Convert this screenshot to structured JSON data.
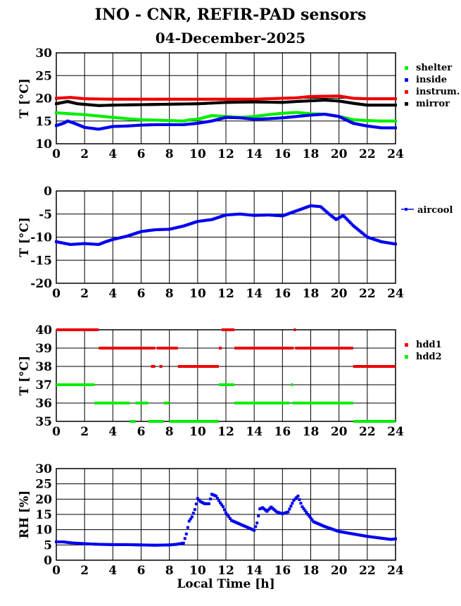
{
  "header": {
    "title": "INO - CNR, REFIR-PAD sensors",
    "date": "04-December-2025"
  },
  "chart_data": [
    {
      "type": "scatter",
      "ylabel": "T [°C]",
      "xlabel": "",
      "xlim": [
        0,
        24
      ],
      "ylim": [
        10,
        30
      ],
      "xticks": [
        "0",
        "2",
        "4",
        "6",
        "8",
        "10",
        "12",
        "14",
        "16",
        "18",
        "20",
        "22",
        "24"
      ],
      "yticks": [
        "10",
        "15",
        "20",
        "25",
        "30"
      ],
      "grid": true,
      "legend": "right",
      "series": [
        {
          "name": "shelter",
          "color": "#00ee00",
          "points": [
            [
              0,
              16.8
            ],
            [
              1,
              16.6
            ],
            [
              2,
              16.4
            ],
            [
              3,
              16.1
            ],
            [
              4,
              15.8
            ],
            [
              5,
              15.5
            ],
            [
              6,
              15.3
            ],
            [
              7,
              15.2
            ],
            [
              8,
              15.1
            ],
            [
              9,
              15.0
            ],
            [
              9.5,
              15.3
            ],
            [
              10,
              15.4
            ],
            [
              10.5,
              15.8
            ],
            [
              11,
              16.2
            ],
            [
              12,
              16.0
            ],
            [
              13,
              15.8
            ],
            [
              14,
              16.0
            ],
            [
              15,
              16.4
            ],
            [
              16,
              16.7
            ],
            [
              17,
              16.9
            ],
            [
              18,
              16.6
            ],
            [
              19,
              16.5
            ],
            [
              20,
              16.0
            ],
            [
              21,
              15.3
            ],
            [
              22,
              15.1
            ],
            [
              23,
              15.0
            ],
            [
              24,
              15.0
            ]
          ]
        },
        {
          "name": "inside",
          "color": "#0000ee",
          "points": [
            [
              0,
              14.0
            ],
            [
              0.5,
              14.5
            ],
            [
              0.8,
              15.0
            ],
            [
              1.2,
              14.6
            ],
            [
              2,
              13.6
            ],
            [
              3,
              13.2
            ],
            [
              3.5,
              13.5
            ],
            [
              4,
              13.8
            ],
            [
              5,
              13.9
            ],
            [
              6,
              14.1
            ],
            [
              7,
              14.2
            ],
            [
              8,
              14.2
            ],
            [
              9,
              14.2
            ],
            [
              10,
              14.5
            ],
            [
              11,
              15.0
            ],
            [
              12,
              15.8
            ],
            [
              13,
              15.7
            ],
            [
              14,
              15.4
            ],
            [
              15,
              15.5
            ],
            [
              16,
              15.7
            ],
            [
              17,
              16.0
            ],
            [
              18,
              16.3
            ],
            [
              19,
              16.5
            ],
            [
              20,
              16.0
            ],
            [
              21,
              14.5
            ],
            [
              22,
              13.9
            ],
            [
              23,
              13.5
            ],
            [
              24,
              13.5
            ]
          ]
        },
        {
          "name": "instrum.",
          "color": "#ee0000",
          "points": [
            [
              0,
              20.0
            ],
            [
              1,
              20.2
            ],
            [
              2,
              19.9
            ],
            [
              4,
              19.8
            ],
            [
              8,
              19.8
            ],
            [
              10,
              19.8
            ],
            [
              12,
              19.8
            ],
            [
              14,
              19.8
            ],
            [
              16,
              20.0
            ],
            [
              17,
              20.1
            ],
            [
              18,
              20.4
            ],
            [
              20,
              20.5
            ],
            [
              21,
              20.0
            ],
            [
              22,
              19.9
            ],
            [
              24,
              19.9
            ]
          ]
        },
        {
          "name": "mirror",
          "color": "#000000",
          "points": [
            [
              0,
              18.8
            ],
            [
              0.8,
              19.3
            ],
            [
              1.5,
              18.8
            ],
            [
              3,
              18.4
            ],
            [
              4,
              18.5
            ],
            [
              6,
              18.6
            ],
            [
              8,
              18.7
            ],
            [
              10,
              18.8
            ],
            [
              12,
              19.1
            ],
            [
              14,
              19.2
            ],
            [
              16,
              19.1
            ],
            [
              17,
              19.3
            ],
            [
              19,
              19.6
            ],
            [
              20,
              19.4
            ],
            [
              21,
              18.9
            ],
            [
              22,
              18.5
            ],
            [
              24,
              18.5
            ]
          ]
        }
      ]
    },
    {
      "type": "scatter",
      "ylabel": "T [°C]",
      "xlabel": "",
      "xlim": [
        0,
        24
      ],
      "ylim": [
        -20,
        0
      ],
      "xticks": [
        "0",
        "2",
        "4",
        "6",
        "8",
        "10",
        "12",
        "14",
        "16",
        "18",
        "20",
        "22",
        "24"
      ],
      "yticks": [
        "-20",
        "-15",
        "-10",
        "-5",
        "0"
      ],
      "grid": true,
      "legend": "right",
      "series": [
        {
          "name": "aircool",
          "color": "#0000ee",
          "points": [
            [
              0,
              -11.0
            ],
            [
              0.5,
              -11.3
            ],
            [
              1,
              -11.6
            ],
            [
              2,
              -11.4
            ],
            [
              3,
              -11.6
            ],
            [
              3.5,
              -11.0
            ],
            [
              4,
              -10.5
            ],
            [
              5,
              -9.8
            ],
            [
              6,
              -8.8
            ],
            [
              7,
              -8.4
            ],
            [
              8,
              -8.3
            ],
            [
              9,
              -7.6
            ],
            [
              10,
              -6.6
            ],
            [
              11,
              -6.2
            ],
            [
              12,
              -5.2
            ],
            [
              13,
              -5.0
            ],
            [
              14,
              -5.3
            ],
            [
              15,
              -5.2
            ],
            [
              16,
              -5.4
            ],
            [
              17,
              -4.3
            ],
            [
              18,
              -3.2
            ],
            [
              18.7,
              -3.4
            ],
            [
              19.3,
              -5.0
            ],
            [
              19.8,
              -6.2
            ],
            [
              20.3,
              -5.3
            ],
            [
              21,
              -7.5
            ],
            [
              22,
              -10.0
            ],
            [
              23,
              -11.0
            ],
            [
              24,
              -11.5
            ]
          ]
        }
      ]
    },
    {
      "type": "scatter",
      "ylabel": "T [°C]",
      "xlabel": "",
      "xlim": [
        0,
        24
      ],
      "ylim": [
        35,
        40
      ],
      "xticks": [
        "0",
        "2",
        "4",
        "6",
        "8",
        "10",
        "12",
        "14",
        "16",
        "18",
        "20",
        "22",
        "24"
      ],
      "yticks": [
        "35",
        "36",
        "37",
        "38",
        "39",
        "40"
      ],
      "grid": true,
      "legend": "right",
      "series": [
        {
          "name": "hdd1",
          "color": "#ee0000",
          "segments": [
            [
              0,
              3,
              40
            ],
            [
              3,
              7,
              39
            ],
            [
              6.7,
              7.0,
              38
            ],
            [
              7.1,
              7.6,
              39
            ],
            [
              7.3,
              7.5,
              38
            ],
            [
              7.6,
              8.6,
              39
            ],
            [
              8.6,
              11.5,
              38
            ],
            [
              11.5,
              11.7,
              39
            ],
            [
              11.7,
              12.6,
              40
            ],
            [
              12.6,
              16.8,
              39
            ],
            [
              16.8,
              16.9,
              40
            ],
            [
              16.9,
              21,
              39
            ],
            [
              21,
              24,
              38
            ]
          ]
        },
        {
          "name": "hdd2",
          "color": "#00ee00",
          "segments": [
            [
              0,
              2.7,
              37
            ],
            [
              2.7,
              5.2,
              36
            ],
            [
              5.2,
              5.6,
              35
            ],
            [
              5.6,
              6.5,
              36
            ],
            [
              6.5,
              7.6,
              35
            ],
            [
              7.6,
              8.0,
              36
            ],
            [
              8.0,
              11.5,
              35
            ],
            [
              11.5,
              12.6,
              37
            ],
            [
              12.6,
              16.5,
              36
            ],
            [
              16.6,
              16.7,
              37
            ],
            [
              16.7,
              21,
              36
            ],
            [
              21,
              24,
              35
            ]
          ]
        }
      ]
    },
    {
      "type": "scatter",
      "ylabel": "RH [%]",
      "xlabel": "Local Time [h]",
      "xlim": [
        0,
        24
      ],
      "ylim": [
        0,
        30
      ],
      "xticks": [
        "0",
        "2",
        "4",
        "6",
        "8",
        "10",
        "12",
        "14",
        "16",
        "18",
        "20",
        "22",
        "24"
      ],
      "yticks": [
        "0",
        "5",
        "10",
        "15",
        "20",
        "25",
        "30"
      ],
      "grid": true,
      "legend": "none",
      "series": [
        {
          "name": "RH",
          "color": "#0000ee",
          "points": [
            [
              0,
              6.0
            ],
            [
              0.5,
              6.0
            ],
            [
              1,
              5.7
            ],
            [
              2,
              5.4
            ],
            [
              3,
              5.2
            ],
            [
              4,
              5.1
            ],
            [
              5,
              5.1
            ],
            [
              6,
              5.0
            ],
            [
              7,
              4.9
            ],
            [
              8,
              5.0
            ],
            [
              8.5,
              5.2
            ],
            [
              9,
              5.6
            ],
            [
              9.2,
              8.6
            ],
            [
              9.4,
              12.8
            ],
            [
              9.6,
              14.2
            ],
            [
              9.8,
              16.6
            ],
            [
              10,
              20.2
            ],
            [
              10.2,
              19.2
            ],
            [
              10.5,
              18.5
            ],
            [
              10.8,
              18.5
            ],
            [
              11,
              21.6
            ],
            [
              11.3,
              21.0
            ],
            [
              11.6,
              18.8
            ],
            [
              11.8,
              17.5
            ],
            [
              12,
              15.5
            ],
            [
              12.4,
              13.0
            ],
            [
              13,
              11.8
            ],
            [
              13.5,
              10.8
            ],
            [
              14,
              9.8
            ],
            [
              14.2,
              12.2
            ],
            [
              14.4,
              16.8
            ],
            [
              14.6,
              17.2
            ],
            [
              14.9,
              16.0
            ],
            [
              15.2,
              17.4
            ],
            [
              15.6,
              15.8
            ],
            [
              16,
              15.2
            ],
            [
              16.4,
              15.8
            ],
            [
              16.8,
              19.6
            ],
            [
              17.1,
              21.0
            ],
            [
              17.4,
              17.5
            ],
            [
              17.8,
              15.0
            ],
            [
              18.2,
              12.6
            ],
            [
              19,
              11.0
            ],
            [
              20,
              9.4
            ],
            [
              21,
              8.6
            ],
            [
              22,
              7.8
            ],
            [
              23,
              7.2
            ],
            [
              23.7,
              6.8
            ],
            [
              24,
              7.0
            ]
          ]
        }
      ]
    }
  ]
}
